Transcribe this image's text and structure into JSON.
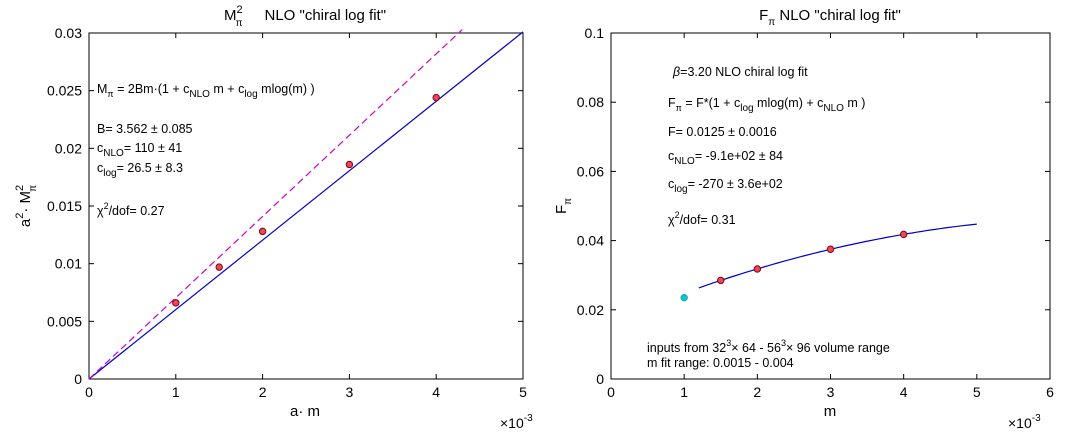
{
  "chart_data": [
    {
      "type": "scatter",
      "title": "Mπ²    NLO \"chiral log fit\"",
      "xlabel": "a· m",
      "ylabel": "a²· Mπ²",
      "xlim": [
        0,
        0.005
      ],
      "ylim": [
        0,
        0.03
      ],
      "x_multiplier_label": "×10⁻³",
      "x_ticks": [
        0,
        1,
        2,
        3,
        4,
        5
      ],
      "y_ticks": [
        "0",
        "0.005",
        "0.01",
        "0.015",
        "0.02",
        "0.025",
        "0.03"
      ],
      "grid": false,
      "points": [
        {
          "x": 0.001,
          "y": 0.0066
        },
        {
          "x": 0.0015,
          "y": 0.0097
        },
        {
          "x": 0.002,
          "y": 0.0128
        },
        {
          "x": 0.003,
          "y": 0.0186
        },
        {
          "x": 0.004,
          "y": 0.0244
        }
      ],
      "fit_line": {
        "x": [
          0,
          0.005
        ],
        "y": [
          0,
          0.0301
        ],
        "color": "#0000cc"
      },
      "lo_line": {
        "x": [
          0,
          0.0043
        ],
        "y": [
          0,
          0.0303
        ],
        "color": "#cc00cc",
        "dashed": true
      },
      "annotations": {
        "formula": "Mπ = 2Bm·(1 + cNLO m + clog mlog(m) )",
        "B": "B= 3.562 ± 0.085",
        "cNLO": "cNLO= 110 ± 41",
        "clog": "clog= 26.5 ± 8.3",
        "chi2": "χ²/dof= 0.27"
      }
    },
    {
      "type": "scatter",
      "title": "Fπ  NLO \"chiral log fit\"",
      "xlabel": "m",
      "ylabel": "Fπ",
      "xlim": [
        0,
        0.006
      ],
      "ylim": [
        0,
        0.1
      ],
      "x_multiplier_label": "×10⁻³",
      "x_ticks": [
        0,
        1,
        2,
        3,
        4,
        5,
        6
      ],
      "y_ticks": [
        "0",
        "0.02",
        "0.04",
        "0.06",
        "0.08",
        "0.1"
      ],
      "grid": false,
      "points": [
        {
          "x": 0.0015,
          "y": 0.0285
        },
        {
          "x": 0.002,
          "y": 0.0318
        },
        {
          "x": 0.003,
          "y": 0.0375
        },
        {
          "x": 0.004,
          "y": 0.0418
        }
      ],
      "excluded_points": [
        {
          "x": 0.001,
          "y": 0.0235,
          "color": "#00c8d8"
        }
      ],
      "fit_curve": {
        "xmin": 0.0012,
        "xmax": 0.005,
        "color": "#0000cc"
      },
      "annotations": {
        "beta": "β=3.20  NLO chiral log fit",
        "formula": "Fπ = F*(1 + clog mlog(m) + cNLO m )",
        "F": "F= 0.0125 ± 0.0016",
        "cNLO": "cNLO= -9.1e+02 ± 84",
        "clog": "clog= -270 ± 3.6e+02",
        "chi2": "χ²/dof= 0.31",
        "inputs": "inputs from 32³× 64  -  56³× 96 volume range",
        "fit_range": "m fit range:  0.0015 - 0.004"
      }
    }
  ],
  "t": {
    "l_title_M": "M",
    "l_title_2": "2",
    "l_title_pi": "π",
    "l_title_rest": "NLO \"chiral log fit\"",
    "l_xlabel": "a· m",
    "l_ylabel_a": "a",
    "l_ylabel_2a": "2",
    "l_ylabel_dot": "· M",
    "l_ylabel_2b": "2",
    "l_ylabel_pi": "π",
    "l_mult": "×10",
    "l_mult_exp": "-3",
    "l_f_M": "M",
    "l_f_pi": "π",
    "l_f_eq": " =  2Bm·(1 + c",
    "l_f_nlo": "NLO",
    "l_f_m": " m + c",
    "l_f_log": "log",
    "l_f_end": " mlog(m) )",
    "l_B": "B=  3.562 ± 0.085",
    "l_cN_c": "c",
    "l_cN_sub": "NLO",
    "l_cN_val": "=  110 ± 41",
    "l_cL_c": "c",
    "l_cL_sub": "log",
    "l_cL_val": "=  26.5 ± 8.3",
    "l_chi": "χ",
    "l_chi_2": "2",
    "l_chi_val": "/dof= 0.27",
    "r_title_F": "F",
    "r_title_pi": "π",
    "r_title_rest": " NLO \"chiral log fit\"",
    "r_xlabel": "m",
    "r_ylabel_F": "F",
    "r_ylabel_pi": "π",
    "r_mult": "×10",
    "r_mult_exp": "-3",
    "r_beta": "β",
    "r_beta_rest": "=3.20   NLO chiral log fit",
    "r_f_F": "F",
    "r_f_pi": "π",
    "r_f_eq": " = F*(1 + c",
    "r_f_log": "log",
    "r_f_m": " mlog(m) + c",
    "r_f_nlo": "NLO",
    "r_f_end": " m )",
    "r_F": "F=  0.0125 ± 0.0016",
    "r_cN_c": "c",
    "r_cN_sub": "NLO",
    "r_cN_val": "=  -9.1e+02 ± 84",
    "r_cL_c": "c",
    "r_cL_sub": "log",
    "r_cL_val": "=  -270 ± 3.6e+02",
    "r_chi": "χ",
    "r_chi_2": "2",
    "r_chi_val": "/dof= 0.31",
    "r_in_a": "inputs from 32",
    "r_in_3a": "3",
    "r_in_b": "× 64  -  56",
    "r_in_3b": "3",
    "r_in_c": "× 96 volume range",
    "r_range": "m fit range:  0.0015 - 0.004"
  }
}
